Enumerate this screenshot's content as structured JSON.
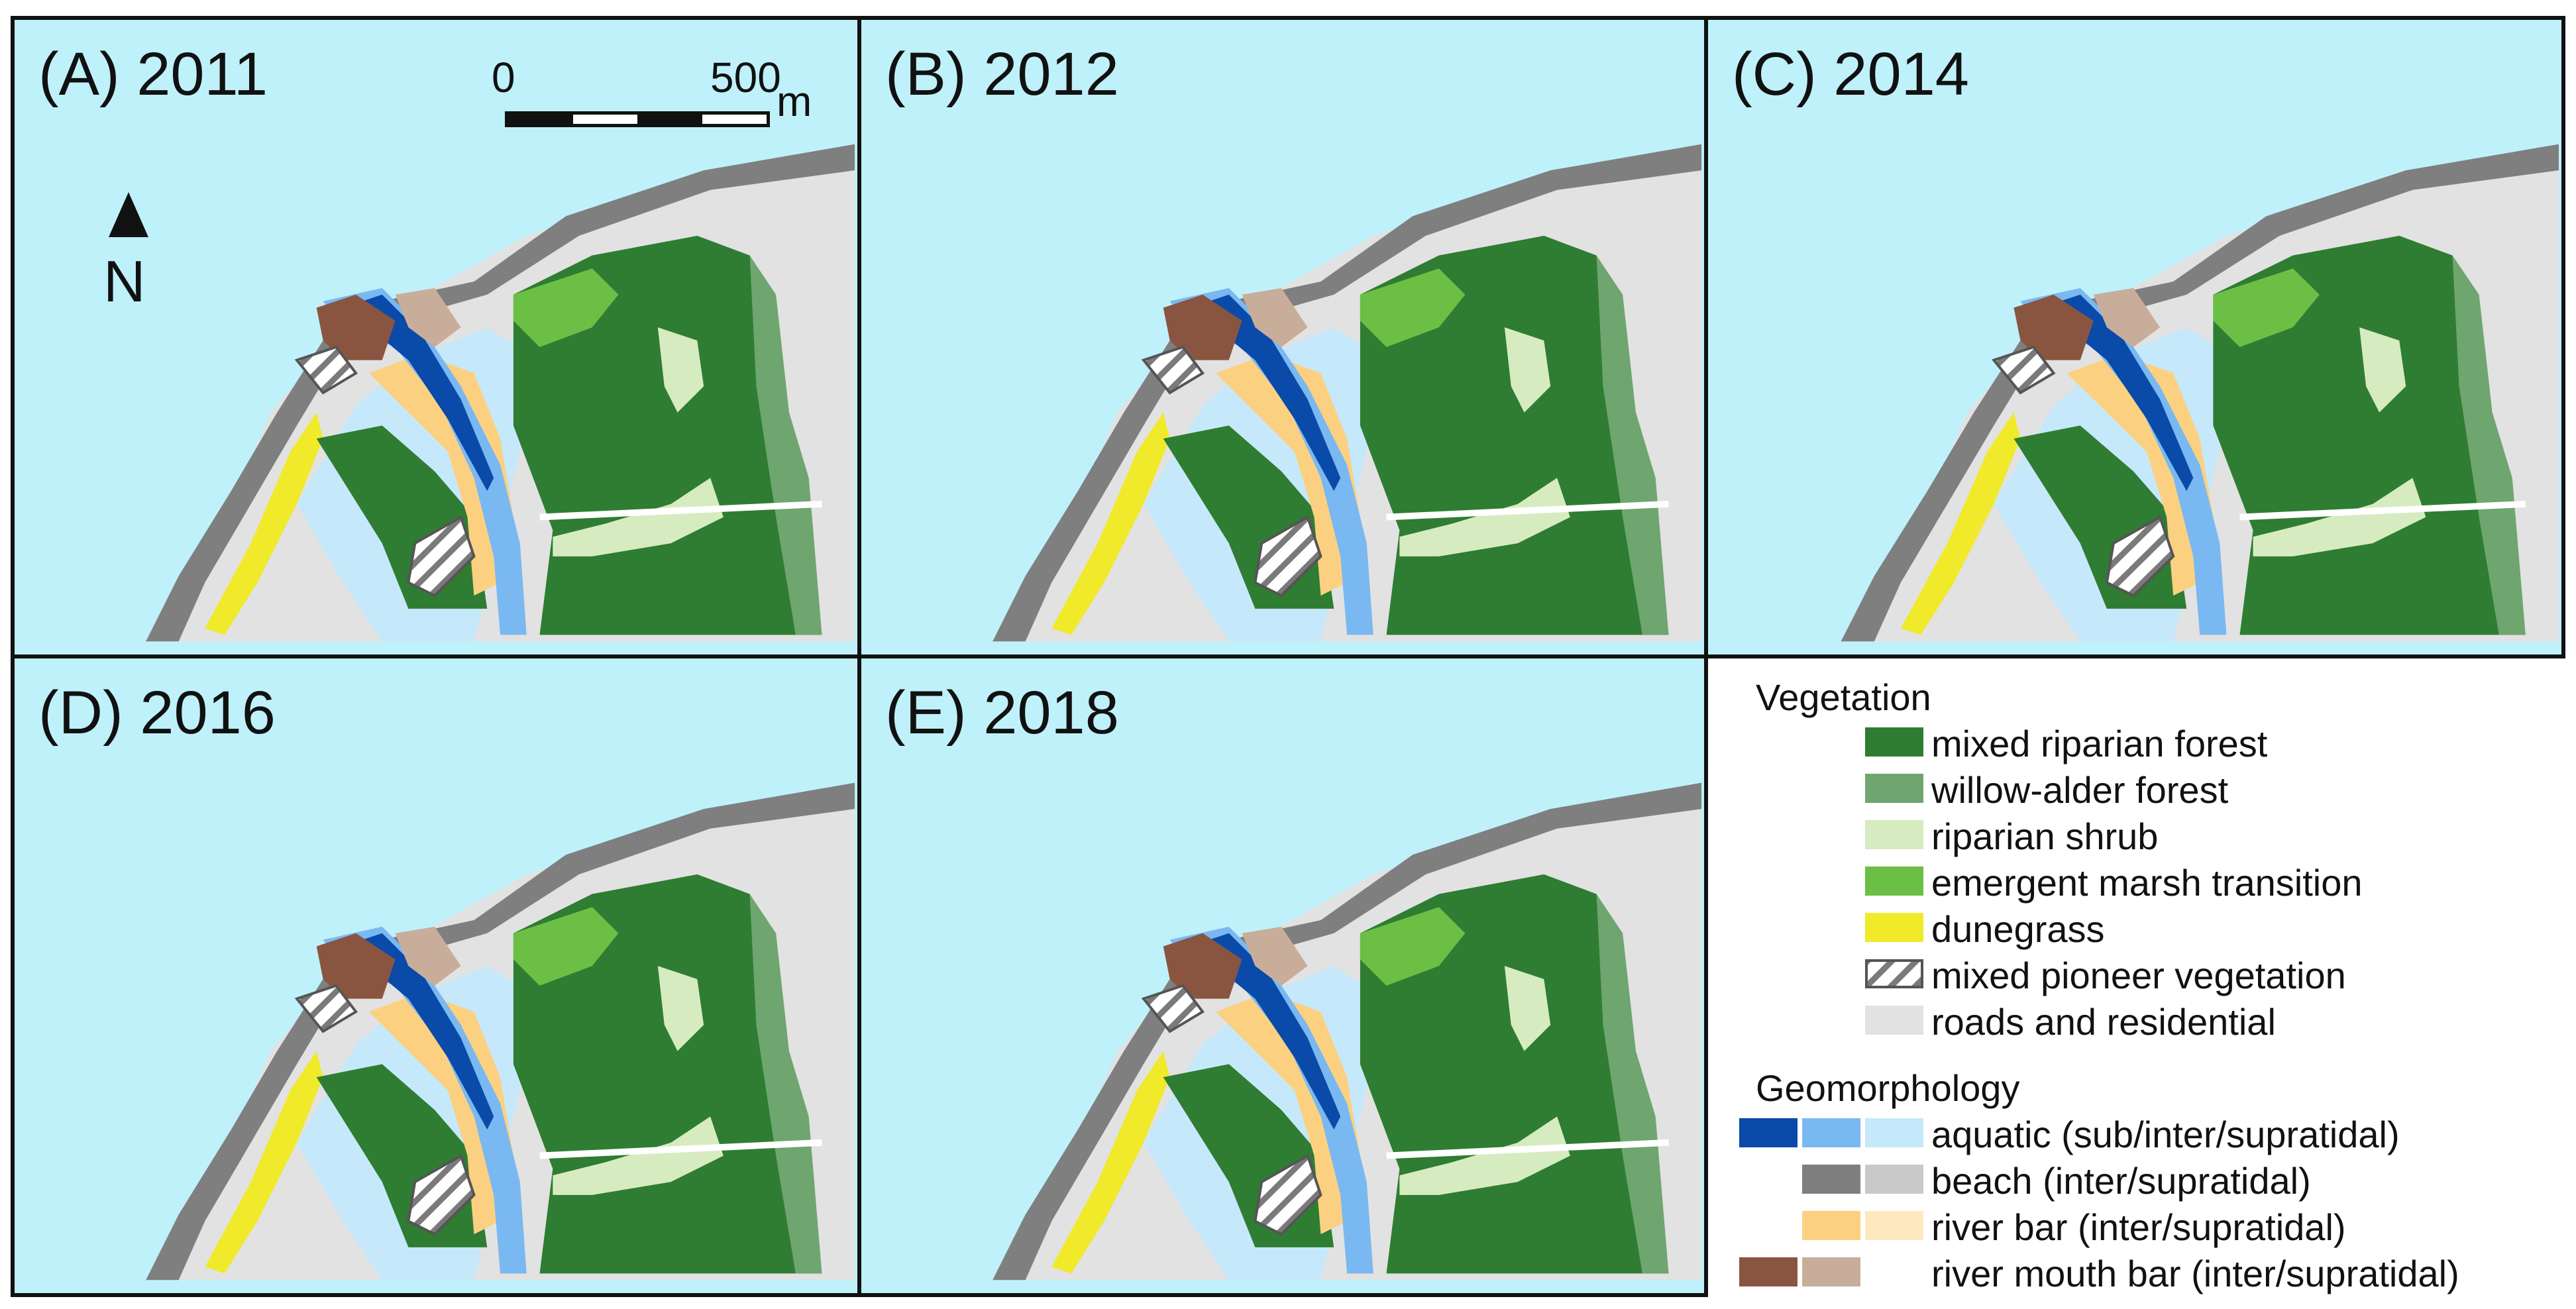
{
  "panels": [
    {
      "id": "A",
      "label": "(A) 2011"
    },
    {
      "id": "B",
      "label": "(B) 2012"
    },
    {
      "id": "C",
      "label": "(C) 2014"
    },
    {
      "id": "D",
      "label": "(D) 2016"
    },
    {
      "id": "E",
      "label": "(E) 2018"
    }
  ],
  "scalebar": {
    "start": "0",
    "end": "500",
    "unit": "m"
  },
  "north": "N",
  "legend": {
    "vegetation_title": "Vegetation",
    "vegetation": [
      {
        "label": "mixed riparian forest",
        "color": "#2e7d32"
      },
      {
        "label": "willow-alder forest",
        "color": "#6fa56f"
      },
      {
        "label": "riparian shrub",
        "color": "#d7ebc0"
      },
      {
        "label": "emergent marsh transition",
        "color": "#6cbf45"
      },
      {
        "label": "dunegrass",
        "color": "#f0ea2a"
      },
      {
        "label": "mixed pioneer vegetation",
        "color": "hatched"
      },
      {
        "label": "roads and residential",
        "color": "#e2e2e2"
      }
    ],
    "geomorphology_title": "Geomorphology",
    "geomorphology": [
      {
        "label": "aquatic (sub/inter/supratidal)",
        "colors": [
          "#0a4aa8",
          "#7ab8f2",
          "#c6e8fb"
        ]
      },
      {
        "label": "beach (inter/supratidal)",
        "colors": [
          "#7f7f7f",
          "#c9c9c9"
        ]
      },
      {
        "label": "river bar (inter/supratidal)",
        "colors": [
          "#fbd181",
          "#fde8c0"
        ]
      },
      {
        "label": "river mouth bar (inter/supratidal)",
        "colors": [
          "#8a5540",
          "#c8ae9a"
        ]
      }
    ]
  }
}
